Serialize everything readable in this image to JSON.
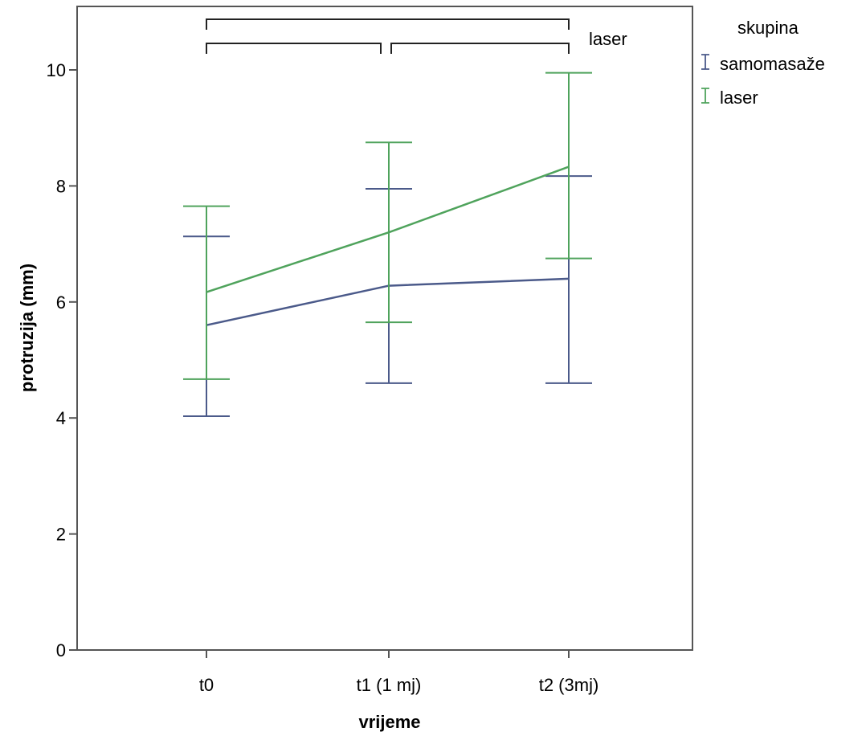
{
  "chart_data": {
    "type": "line",
    "categories": [
      "t0",
      "t1 (1 mj)",
      "t2 (3mj)"
    ],
    "xlabel": "vrijeme",
    "ylabel": "protruzija (mm)",
    "ylim": [
      0,
      11
    ],
    "yticks": [
      0,
      2,
      4,
      6,
      8,
      10
    ],
    "grid": false,
    "error_bars": true,
    "legend": {
      "title": "skupina",
      "position": "top-right outside"
    },
    "series": [
      {
        "name": "samomasaže",
        "color": "#4b5a8a",
        "values": [
          5.6,
          6.28,
          6.4
        ],
        "lower": [
          4.03,
          4.6,
          4.6
        ],
        "upper": [
          7.13,
          7.95,
          8.17
        ]
      },
      {
        "name": "laser",
        "color": "#4fa35c",
        "values": [
          6.17,
          7.2,
          8.33
        ],
        "lower": [
          4.67,
          5.65,
          6.75
        ],
        "upper": [
          7.65,
          8.75,
          9.95
        ]
      }
    ],
    "significance_brackets": [
      {
        "from": 0,
        "to": 2,
        "level": 1
      },
      {
        "from": 0,
        "to": 1,
        "level": 0
      },
      {
        "from": 1,
        "to": 2,
        "level": 0
      }
    ],
    "bracket_label": "laser"
  }
}
